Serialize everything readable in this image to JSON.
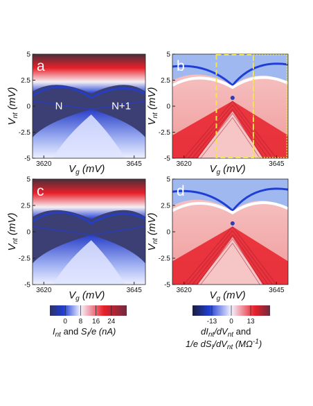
{
  "panels": [
    {
      "id": "a",
      "label": "a",
      "kind": "current",
      "regions": [
        "N",
        "N+1"
      ],
      "box": null
    },
    {
      "id": "b",
      "label": "b",
      "kind": "deriv",
      "regions": [],
      "box": "yes"
    },
    {
      "id": "c",
      "label": "c",
      "kind": "current",
      "regions": [],
      "box": null
    },
    {
      "id": "d",
      "label": "d",
      "kind": "deriv",
      "regions": [],
      "box": null
    }
  ],
  "axes": {
    "xlabel_main": "V",
    "xlabel_sub": "g",
    "xlabel_unit": " (mV)",
    "ylabel_main": "V",
    "ylabel_sub": "nt",
    "ylabel_unit": " (mV)",
    "xticks": [
      "3620",
      "3645"
    ],
    "yticks": [
      "5",
      "2.5",
      "0",
      "-2.5",
      "-5"
    ]
  },
  "colorbar_left": {
    "ticks": [
      "0",
      "8",
      "16",
      "24"
    ],
    "label_line1": "I",
    "label_line1_sub": "nt",
    "label_line1_mid": " and ",
    "label_line1_s": "S",
    "label_line1_ssub": "I",
    "label_line1_end": "/e (nA)"
  },
  "colorbar_right": {
    "ticks": [
      "-13",
      "0",
      "13"
    ],
    "line1_a": "dI",
    "line1_a_sub": "nt",
    "line1_b": "/dV",
    "line1_b_sub": "nt",
    "line1_c": " and",
    "line2_a": "1/e dS",
    "line2_a_sub": "I",
    "line2_b": "/dV",
    "line2_b_sub": "nt",
    "line2_c": " (MΩ",
    "line2_sup": "-1",
    "line2_d": ")"
  },
  "colors": {
    "navy": "#3c3f73",
    "blue": "#1f3ed6",
    "white": "#f4f4ff",
    "red": "#e8202a",
    "darkred": "#6e2a40",
    "pink": "#f2b3b3",
    "yellow": "#f2e64a"
  }
}
